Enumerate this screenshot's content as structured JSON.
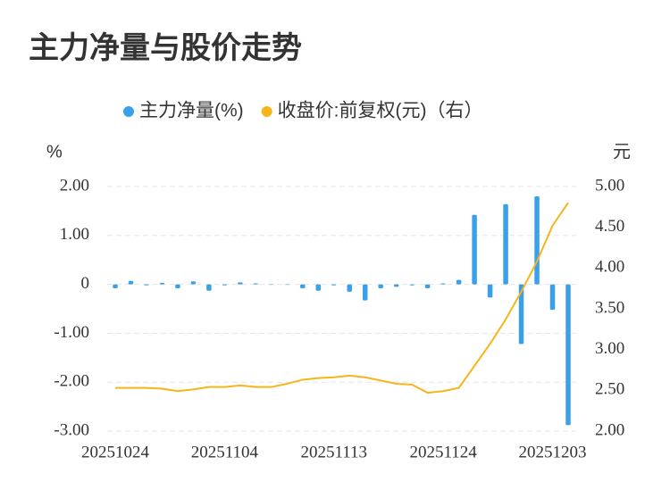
{
  "chart_data": {
    "type": "bar",
    "title": "主力净量与股价走势",
    "ylabel": "%",
    "y2label": "元",
    "categories": [
      "20251024",
      null,
      null,
      null,
      null,
      null,
      null,
      "20251104",
      null,
      null,
      null,
      null,
      null,
      null,
      "20251113",
      null,
      null,
      null,
      null,
      null,
      null,
      "20251124",
      null,
      null,
      null,
      null,
      null,
      null,
      "20251203",
      null
    ],
    "series": [
      {
        "name": "主力净量(%)",
        "type": "bar",
        "color": "#3ba0ea",
        "axis": "y",
        "values": [
          -0.08,
          0.07,
          -0.02,
          0.03,
          -0.08,
          0.06,
          -0.13,
          -0.02,
          0.04,
          0.02,
          -0.01,
          -0.01,
          -0.08,
          -0.13,
          -0.02,
          -0.15,
          -0.33,
          -0.08,
          -0.05,
          -0.02,
          -0.08,
          0.02,
          0.09,
          1.42,
          -0.27,
          1.64,
          -1.22,
          1.8,
          -0.52,
          -2.88
        ]
      },
      {
        "name": "收盘价:前复权(元)（右）",
        "type": "line",
        "color": "#f5b51b",
        "axis": "y2",
        "values": [
          2.53,
          2.53,
          2.53,
          2.52,
          2.49,
          2.51,
          2.54,
          2.54,
          2.56,
          2.54,
          2.54,
          2.58,
          2.63,
          2.65,
          2.66,
          2.68,
          2.66,
          2.62,
          2.58,
          2.57,
          2.47,
          2.49,
          2.53,
          2.8,
          3.07,
          3.37,
          3.71,
          4.08,
          4.52,
          4.8
        ]
      }
    ],
    "ylim": [
      -3,
      2
    ],
    "yticks": [
      {
        "value": 2,
        "label": "2.00"
      },
      {
        "value": 1,
        "label": "1.00"
      },
      0,
      {
        "value": -1,
        "label": "-1.00"
      },
      {
        "value": -2,
        "label": "-2.00"
      },
      {
        "value": -3,
        "label": "-3.00"
      }
    ],
    "y2lim": [
      2,
      5
    ],
    "y2ticks": [
      {
        "value": 5,
        "label": "5.00"
      },
      {
        "value": 4.5,
        "label": "4.50"
      },
      {
        "value": 4,
        "label": "4.00"
      },
      {
        "value": 3.5,
        "label": "3.50"
      },
      {
        "value": 3,
        "label": "3.00"
      },
      {
        "value": 2.5,
        "label": "2.50"
      },
      {
        "value": 2,
        "label": "2.00"
      }
    ],
    "grid": true
  }
}
